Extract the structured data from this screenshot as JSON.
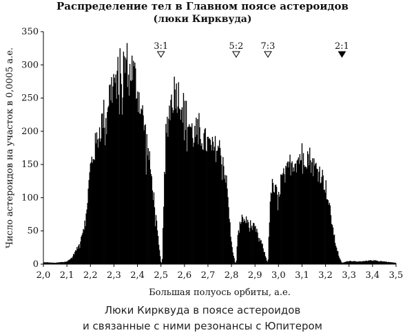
{
  "chart_data": {
    "type": "bar",
    "title": "Распределение тел в Главном поясе астероидов",
    "subtitle": "(люки Кирквуда)",
    "xlabel": "Большая полуось орбиты, а.е.",
    "ylabel": "Число астероидов на участок в 0,0005 а.е.",
    "xlim": [
      2.0,
      3.5
    ],
    "ylim": [
      0,
      350
    ],
    "xticks": [
      "2,0",
      "2,1",
      "2,2",
      "2,3",
      "2,4",
      "2,5",
      "2,6",
      "2,7",
      "2,8",
      "2,9",
      "3,0",
      "3,1",
      "3,2",
      "3,3",
      "3,4",
      "3,5"
    ],
    "yticks": [
      "0",
      "50",
      "100",
      "150",
      "200",
      "250",
      "300",
      "350"
    ],
    "grid": false,
    "resonances": [
      {
        "label": "3:1",
        "x": 2.5,
        "filled": false
      },
      {
        "label": "5:2",
        "x": 2.82,
        "filled": false
      },
      {
        "label": "7:3",
        "x": 2.955,
        "filled": false
      },
      {
        "label": "2:1",
        "x": 3.27,
        "filled": true
      }
    ],
    "bin_width": 0.0005,
    "envelope": {
      "x": [
        2.0,
        2.05,
        2.1,
        2.12,
        2.15,
        2.18,
        2.2,
        2.22,
        2.25,
        2.28,
        2.3,
        2.33,
        2.35,
        2.37,
        2.39,
        2.41,
        2.43,
        2.45,
        2.47,
        2.49,
        2.5,
        2.505,
        2.51,
        2.52,
        2.54,
        2.56,
        2.58,
        2.6,
        2.62,
        2.64,
        2.66,
        2.68,
        2.7,
        2.72,
        2.74,
        2.76,
        2.78,
        2.8,
        2.815,
        2.82,
        2.825,
        2.84,
        2.87,
        2.9,
        2.93,
        2.95,
        2.955,
        2.96,
        2.97,
        2.99,
        3.0,
        3.01,
        3.03,
        3.05,
        3.08,
        3.1,
        3.13,
        3.15,
        3.18,
        3.2,
        3.22,
        3.24,
        3.26,
        3.27,
        3.28,
        3.3,
        3.35,
        3.4,
        3.45,
        3.5
      ],
      "y": [
        3,
        2,
        4,
        10,
        28,
        70,
        150,
        180,
        220,
        260,
        280,
        300,
        310,
        305,
        285,
        250,
        210,
        160,
        100,
        30,
        2,
        2,
        70,
        200,
        245,
        270,
        255,
        235,
        215,
        195,
        210,
        190,
        185,
        175,
        180,
        170,
        120,
        30,
        2,
        2,
        40,
        70,
        65,
        55,
        30,
        5,
        2,
        60,
        120,
        110,
        100,
        130,
        135,
        155,
        160,
        170,
        165,
        150,
        140,
        120,
        80,
        35,
        8,
        2,
        3,
        5,
        4,
        6,
        4,
        2
      ]
    }
  },
  "captions": {
    "line1": "Люки Кирквуда в поясе астероидов",
    "line2": "и связанные с ними резонансы с Юпитером"
  }
}
